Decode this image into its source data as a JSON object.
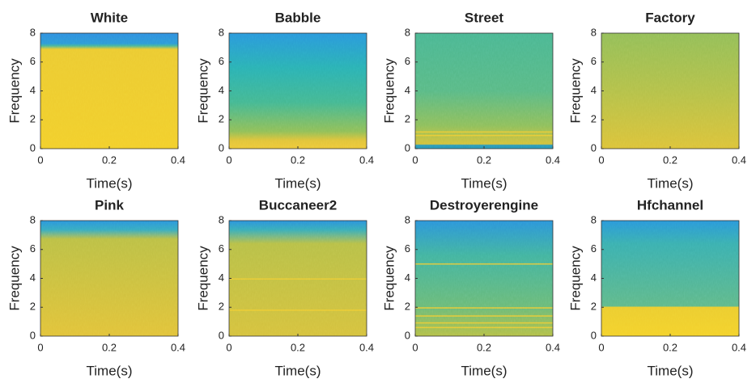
{
  "chart_data": [
    {
      "type": "spectrogram",
      "title": "White",
      "xlabel": "Time(s)",
      "ylabel": "Frequency",
      "xlim": [
        0,
        0.4
      ],
      "xticks": [
        0,
        0.2,
        0.4
      ],
      "ylim": [
        0,
        8
      ],
      "yticks": [
        0,
        2,
        4,
        6,
        8
      ]
    },
    {
      "type": "spectrogram",
      "title": "Babble",
      "xlabel": "Time(s)",
      "ylabel": "Frequency",
      "xlim": [
        0,
        0.4
      ],
      "xticks": [
        0,
        0.2,
        0.4
      ],
      "ylim": [
        0,
        8
      ],
      "yticks": [
        0,
        2,
        4,
        6,
        8
      ]
    },
    {
      "type": "spectrogram",
      "title": "Street",
      "xlabel": "Time(s)",
      "ylabel": "Frequency",
      "xlim": [
        0,
        0.4
      ],
      "xticks": [
        0,
        0.2,
        0.4
      ],
      "ylim": [
        0,
        8
      ],
      "yticks": [
        0,
        2,
        4,
        6,
        8
      ]
    },
    {
      "type": "spectrogram",
      "title": "Factory",
      "xlabel": "Time(s)",
      "ylabel": "Frequency",
      "xlim": [
        0,
        0.4
      ],
      "xticks": [
        0,
        0.2,
        0.4
      ],
      "ylim": [
        0,
        8
      ],
      "yticks": [
        0,
        2,
        4,
        6,
        8
      ]
    },
    {
      "type": "spectrogram",
      "title": "Pink",
      "xlabel": "Time(s)",
      "ylabel": "Frequency",
      "xlim": [
        0,
        0.4
      ],
      "xticks": [
        0,
        0.2,
        0.4
      ],
      "ylim": [
        0,
        8
      ],
      "yticks": [
        0,
        2,
        4,
        6,
        8
      ]
    },
    {
      "type": "spectrogram",
      "title": "Buccaneer2",
      "xlabel": "Time(s)",
      "ylabel": "Frequency",
      "xlim": [
        0,
        0.4
      ],
      "xticks": [
        0,
        0.2,
        0.4
      ],
      "ylim": [
        0,
        8
      ],
      "yticks": [
        0,
        2,
        4,
        6,
        8
      ]
    },
    {
      "type": "spectrogram",
      "title": "Destroyerengine",
      "xlabel": "Time(s)",
      "ylabel": "Frequency",
      "xlim": [
        0,
        0.4
      ],
      "xticks": [
        0,
        0.2,
        0.4
      ],
      "ylim": [
        0,
        8
      ],
      "yticks": [
        0,
        2,
        4,
        6,
        8
      ]
    },
    {
      "type": "spectrogram",
      "title": "Hfchannel",
      "xlabel": "Time(s)",
      "ylabel": "Frequency",
      "xlim": [
        0,
        0.4
      ],
      "xticks": [
        0,
        0.2,
        0.4
      ],
      "ylim": [
        0,
        8
      ],
      "yticks": [
        0,
        2,
        4,
        6,
        8
      ]
    }
  ]
}
